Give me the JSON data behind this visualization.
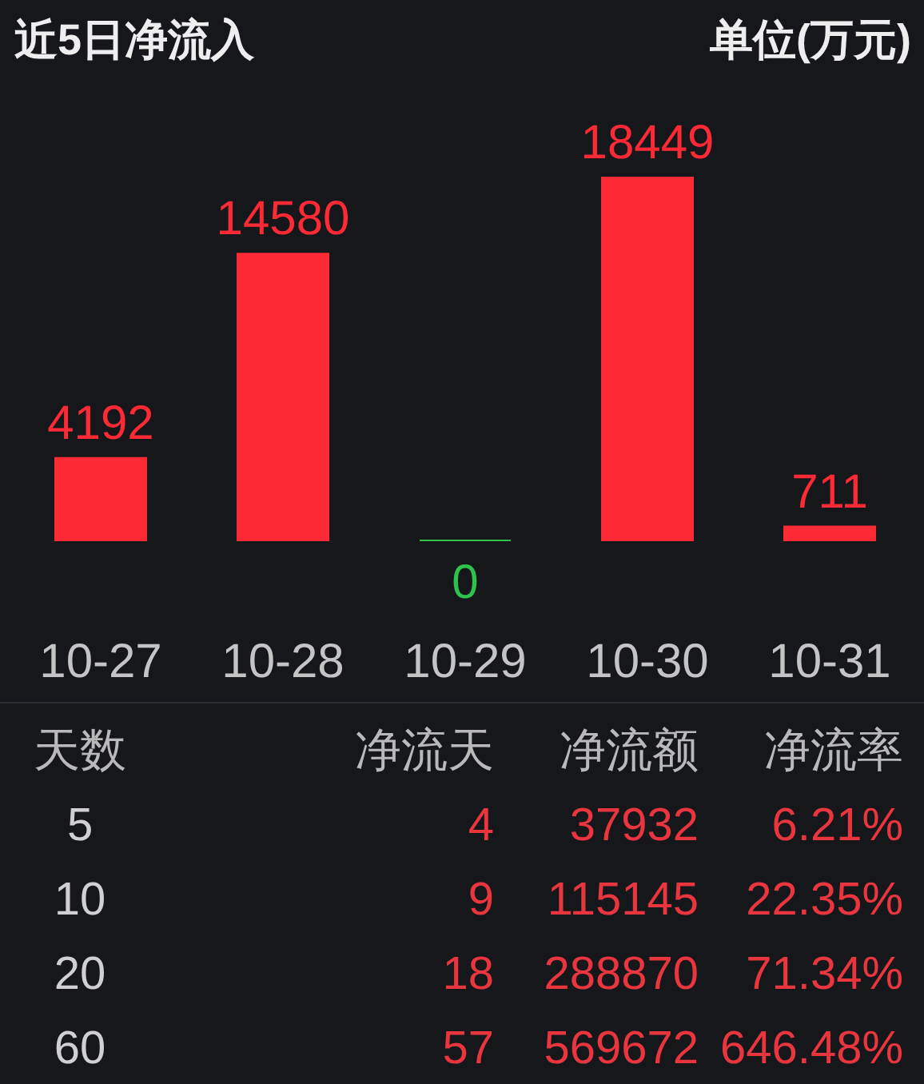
{
  "chart_data": [
    {
      "type": "bar",
      "title": "近5日净流入",
      "annotations": [
        "单位(万元)"
      ],
      "categories": [
        "10-27",
        "10-28",
        "10-29",
        "10-30",
        "10-31"
      ],
      "values": [
        4192,
        14580,
        0,
        18449,
        711
      ],
      "colors": [
        "#fc2a35",
        "#fc2a35",
        "#2ec24a",
        "#fc2a35",
        "#fc2a35"
      ],
      "data_labels": true,
      "tick_labels": "x"
    },
    {
      "type": "other",
      "annotations": [
        "天数 净流天 净流额 净流率",
        "5 4 37932 6.21%",
        "10 9 115145 22.35%",
        "20 18 288870 71.34%",
        "60 57 569672 646.48%"
      ]
    }
  ]
}
